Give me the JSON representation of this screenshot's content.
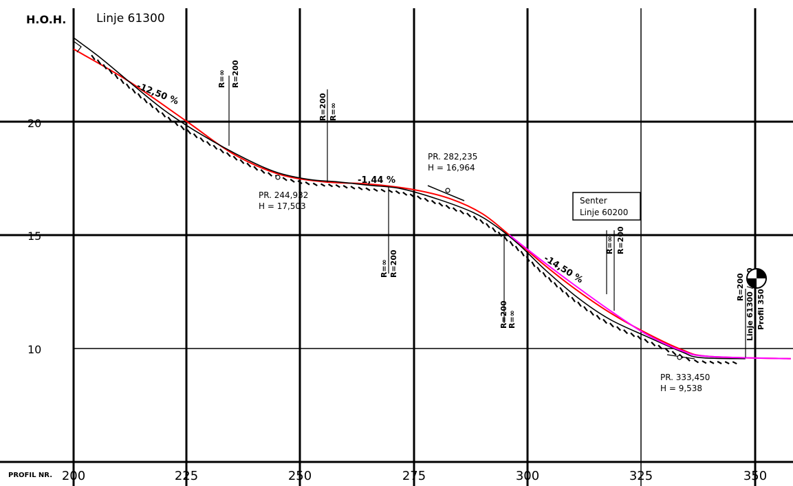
{
  "header": {
    "axis_title": "H.O.H.",
    "line_title": "Linje 61300"
  },
  "footer": {
    "profile_label": "PROFIL NR."
  },
  "chart_data": {
    "type": "line",
    "xlim": [
      200,
      358
    ],
    "ylim": [
      5,
      25
    ],
    "x_ticks": [
      "200",
      "225",
      "250",
      "275",
      "300",
      "325",
      "350"
    ],
    "y_ticks": [
      "20",
      "15",
      "10"
    ],
    "series": [
      {
        "color": "#ff0000",
        "points": [
          [
            200,
            23.2
          ],
          [
            212,
            21.8
          ],
          [
            225,
            20.0
          ],
          [
            235,
            18.6
          ],
          [
            245,
            17.7
          ],
          [
            255,
            17.35
          ],
          [
            265,
            17.25
          ],
          [
            275,
            17.0
          ],
          [
            283,
            16.6
          ],
          [
            290,
            15.95
          ],
          [
            296,
            15.0
          ],
          [
            303,
            13.8
          ],
          [
            310,
            12.7
          ],
          [
            318,
            11.6
          ],
          [
            326,
            10.7
          ],
          [
            334,
            9.95
          ],
          [
            340,
            9.65
          ],
          [
            358,
            9.55
          ]
        ]
      },
      {
        "color": "#000000",
        "points": [
          [
            200,
            23.7
          ],
          [
            206,
            22.8
          ],
          [
            212,
            21.8
          ],
          [
            220,
            20.5
          ],
          [
            228,
            19.45
          ],
          [
            238,
            18.35
          ],
          [
            245,
            17.75
          ],
          [
            252,
            17.45
          ],
          [
            258,
            17.35
          ],
          [
            265,
            17.2
          ],
          [
            272,
            17.05
          ],
          [
            280,
            16.6
          ],
          [
            288,
            16.0
          ],
          [
            293,
            15.4
          ],
          [
            298,
            14.6
          ],
          [
            304,
            13.45
          ],
          [
            311,
            12.25
          ],
          [
            318,
            11.3
          ],
          [
            326,
            10.55
          ],
          [
            334,
            9.85
          ],
          [
            338,
            9.6
          ],
          [
            348,
            9.55
          ]
        ]
      },
      {
        "color": "#ff00ff",
        "points": [
          [
            296,
            15.0
          ],
          [
            303,
            13.9
          ],
          [
            310,
            12.85
          ],
          [
            318,
            11.7
          ],
          [
            326,
            10.65
          ],
          [
            334,
            9.9
          ],
          [
            340,
            9.65
          ],
          [
            358,
            9.55
          ]
        ]
      }
    ],
    "annotations": {
      "points": [
        {
          "station": "PR. 244,932",
          "height": "H = 17,503"
        },
        {
          "station": "PR. 282,235",
          "height": "H = 16,964"
        },
        {
          "station": "PR. 333,450",
          "height": "H = 9,538"
        }
      ],
      "grades": [
        "-12,50 %",
        "-1,44 %",
        "-14,50 %"
      ],
      "curve_labels": [
        "R=∞",
        "R=200",
        "R=200",
        "R=∞",
        "R=∞",
        "R=200",
        "R=200",
        "R=∞",
        "R=∞",
        "R=200",
        "R=200",
        "Linje 61300 / 350",
        "Profil 350"
      ],
      "box": [
        "Senter",
        "Linje 60200"
      ]
    }
  }
}
